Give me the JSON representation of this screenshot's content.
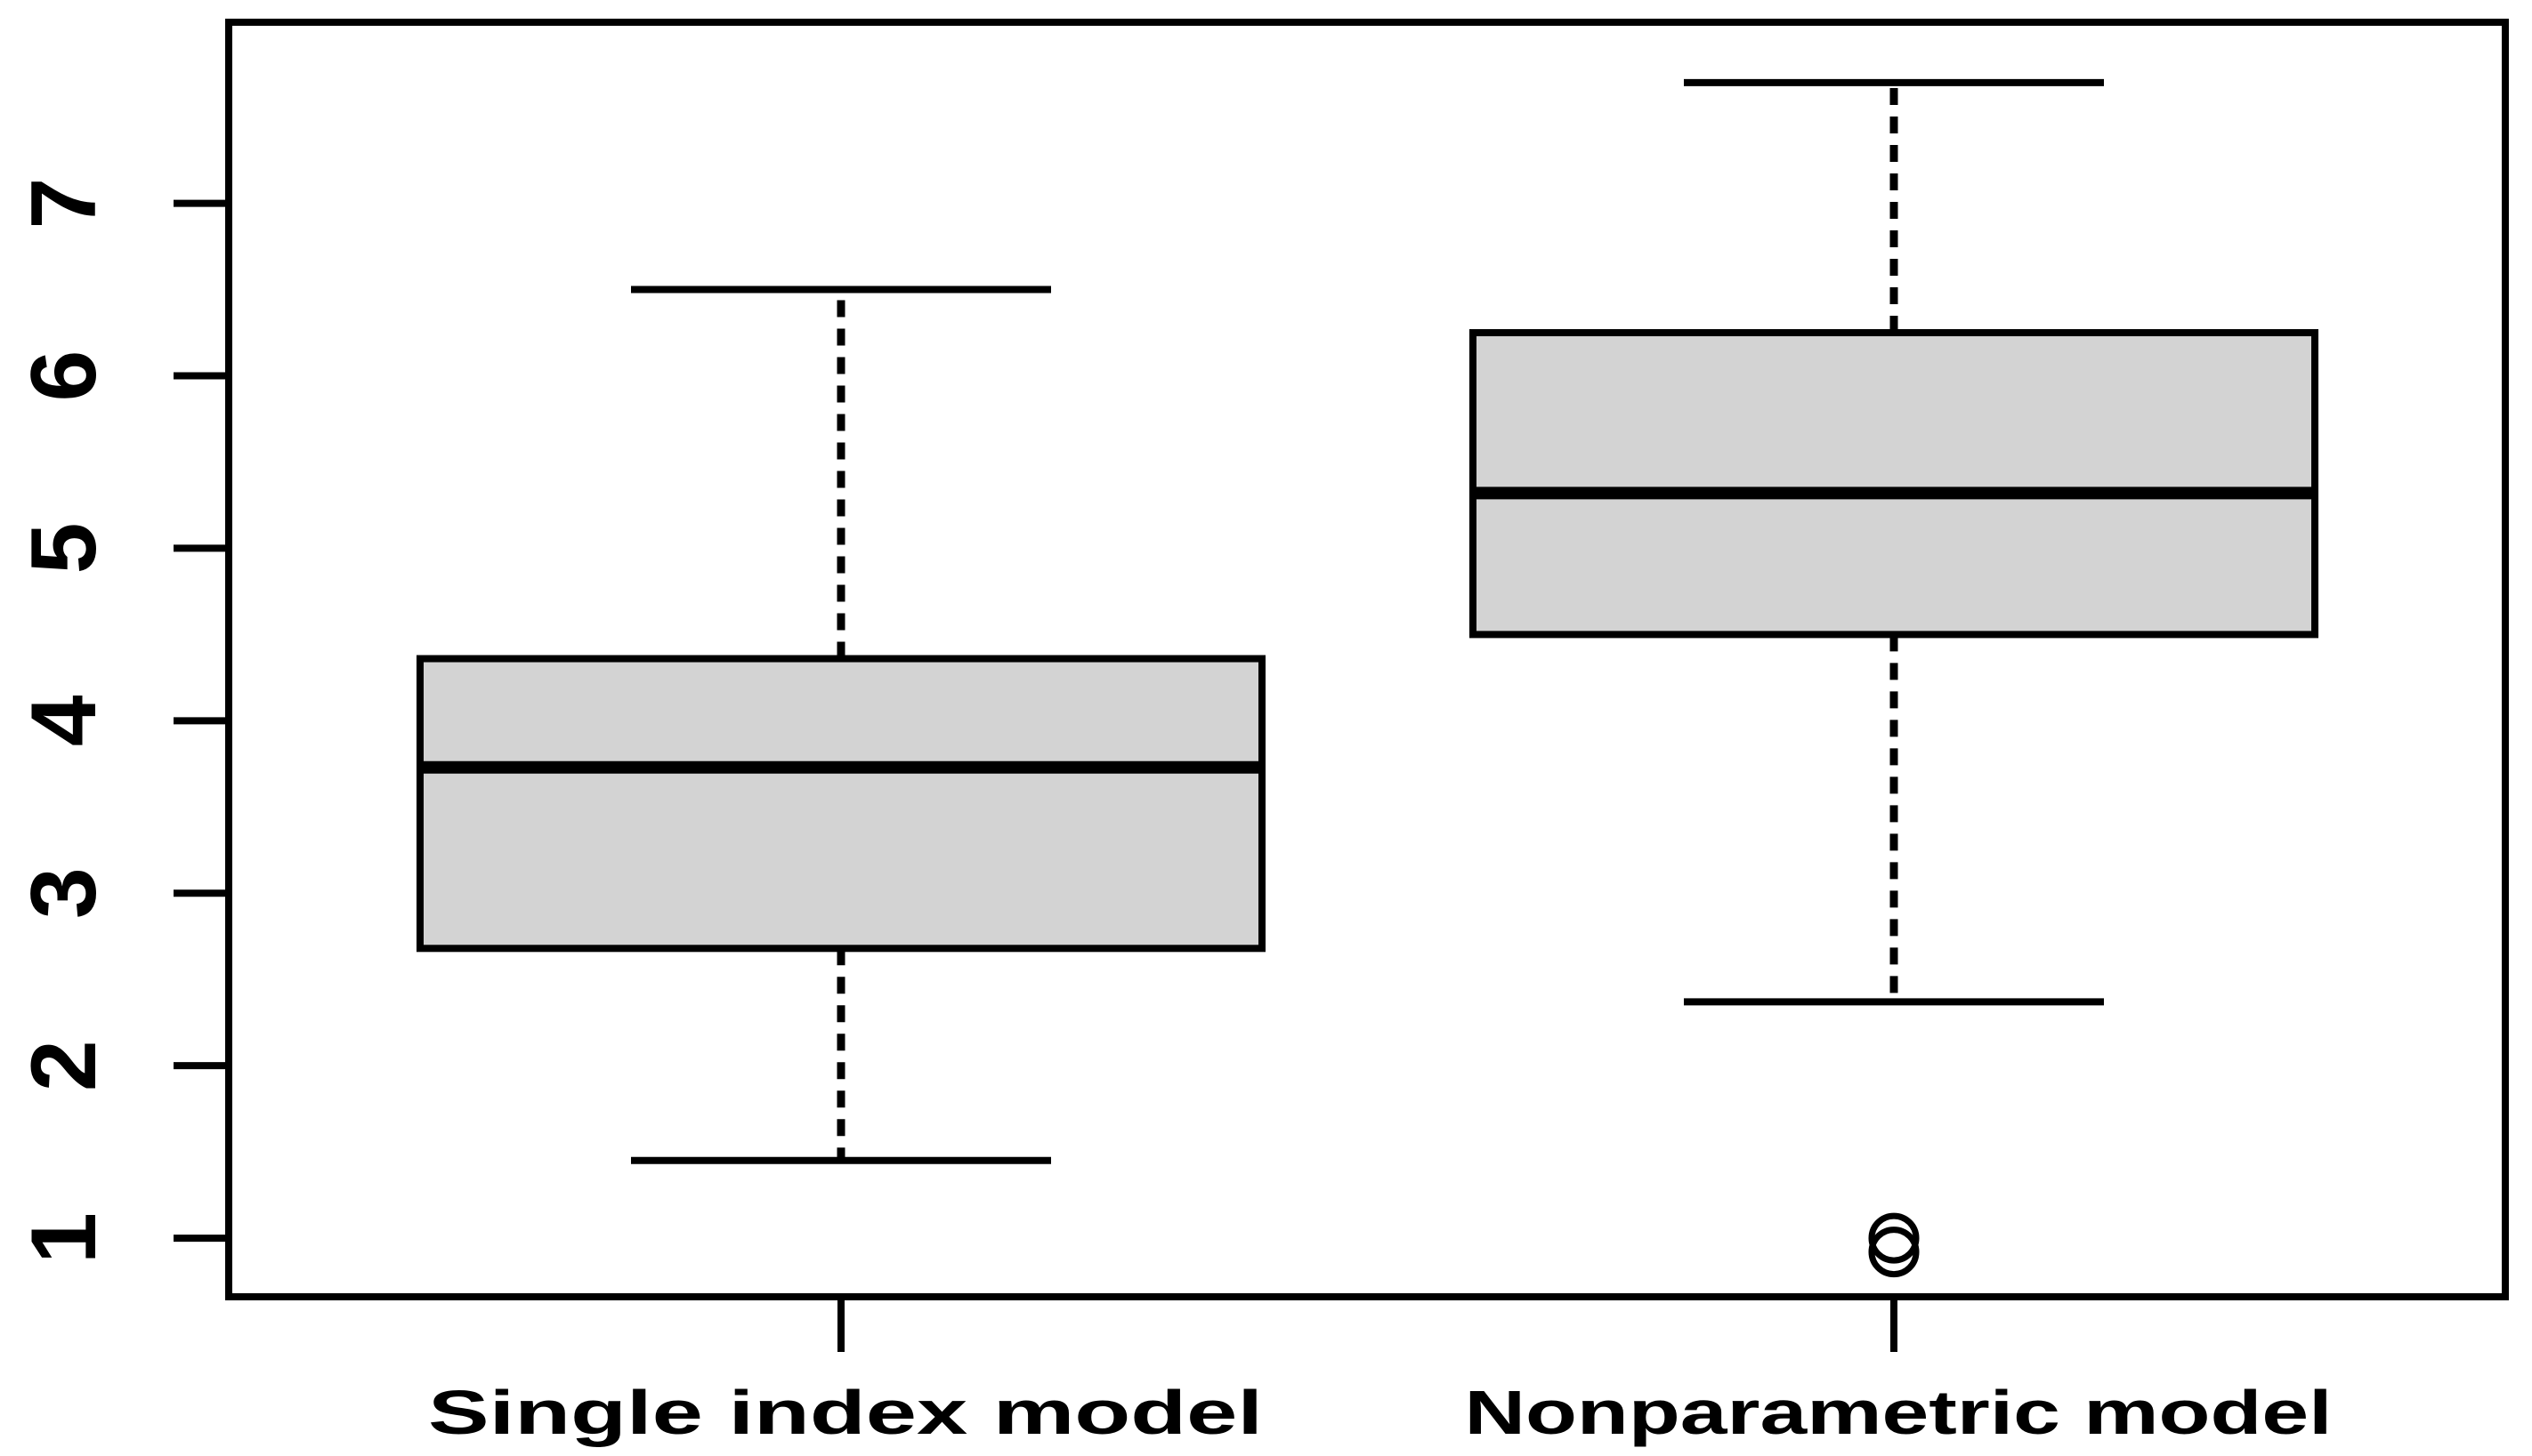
{
  "figure": {
    "background": "#ffffff",
    "title": ""
  },
  "chart_data": {
    "type": "boxplot",
    "title": "",
    "xlabel": "",
    "ylabel": "",
    "categories": [
      "Single index model",
      "Nonparametric model"
    ],
    "y_ticks": [
      1,
      2,
      3,
      4,
      5,
      6,
      7
    ],
    "ylim": [
      0.66,
      8.05
    ],
    "grid": false,
    "legend": false,
    "box_fill": "#d3d3d3",
    "line_color": "#000000",
    "whisker_style": "dashed",
    "series": [
      {
        "name": "Single index model",
        "lower_whisker": 1.45,
        "q1": 2.68,
        "median": 3.73,
        "q3": 4.36,
        "upper_whisker": 6.5,
        "outliers": []
      },
      {
        "name": "Nonparametric model",
        "lower_whisker": 2.37,
        "q1": 4.5,
        "median": 5.32,
        "q3": 6.25,
        "upper_whisker": 7.7,
        "outliers": [
          1.0,
          0.92
        ]
      }
    ]
  }
}
